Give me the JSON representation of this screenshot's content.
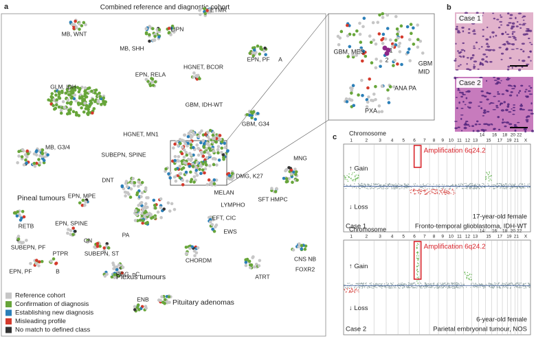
{
  "panel_a": {
    "label": "a",
    "title": "Combined reference and diagnostic cohort",
    "classes": [
      "MB, WNT",
      "LIPN",
      "ETMR",
      "MB, SHH",
      "HGNET, BCOR",
      "EPN, PF",
      "A",
      "EPN, RELA",
      "GLM, IDH",
      "GBM, IDH-WT",
      "GBM, G34",
      "HGNET, MN1",
      "MB, G3/4",
      "SUBEPN, SPINE",
      "MNG",
      "DMG, K27",
      "DNT",
      "EPN, MPE",
      "MELAN",
      "SFT HMPC",
      "Pineal tumours",
      "LYMPHO",
      "EFT, CIC",
      "RETB",
      "EPN, SPINE",
      "PA",
      "CN",
      "EWS",
      "SUBEPN, ST",
      "CHORDM",
      "CNS NB",
      "FOXR2",
      "SUBEPN, PF",
      "PTPR",
      "PGG, nC",
      "ATRT",
      "EPN, PF",
      "B",
      "Plexus tumours",
      "ENB",
      "Pituitary adenomas"
    ],
    "legend": [
      {
        "label": "Reference cohort",
        "color": "#c6c6c6"
      },
      {
        "label": "Confirmation of diagnosis",
        "color": "#67a53a"
      },
      {
        "label": "Establishing new diagnosis",
        "color": "#2b7fb8"
      },
      {
        "label": "Misleading profile",
        "color": "#d43a2c"
      },
      {
        "label": "No match to defined class",
        "color": "#333333"
      }
    ],
    "inset_labels": [
      "GBM, MES",
      "1",
      "2",
      "GBM",
      "MID",
      "ANA PA",
      "PXA"
    ]
  },
  "panel_b": {
    "label": "b",
    "cases": [
      "Case 1",
      "Case 2"
    ]
  },
  "panel_c": {
    "label": "c",
    "chromosomes": [
      "1",
      "2",
      "3",
      "4",
      "5",
      "6",
      "7",
      "8",
      "9",
      "10",
      "11",
      "12",
      "13",
      "14",
      "15",
      "16",
      "17",
      "18",
      "19",
      "20",
      "21",
      "22",
      "X"
    ],
    "plots": [
      {
        "axis_title": "Chromosome",
        "amplification": "Amplification 6q24.2",
        "gain": "↑ Gain",
        "loss": "↓ Loss",
        "age_sex": "17-year-old female",
        "diagnosis": "Fronto-temporal glioblastoma, IDH-WT",
        "case": "Case 1"
      },
      {
        "axis_title": "Chromosome",
        "amplification": "Amplification 6q24.2",
        "gain": "↑ Gain",
        "loss": "↓ Loss",
        "age_sex": "6-year-old female",
        "diagnosis": "Parietal embryonal tumour, NOS",
        "case": "Case 2"
      }
    ]
  }
}
